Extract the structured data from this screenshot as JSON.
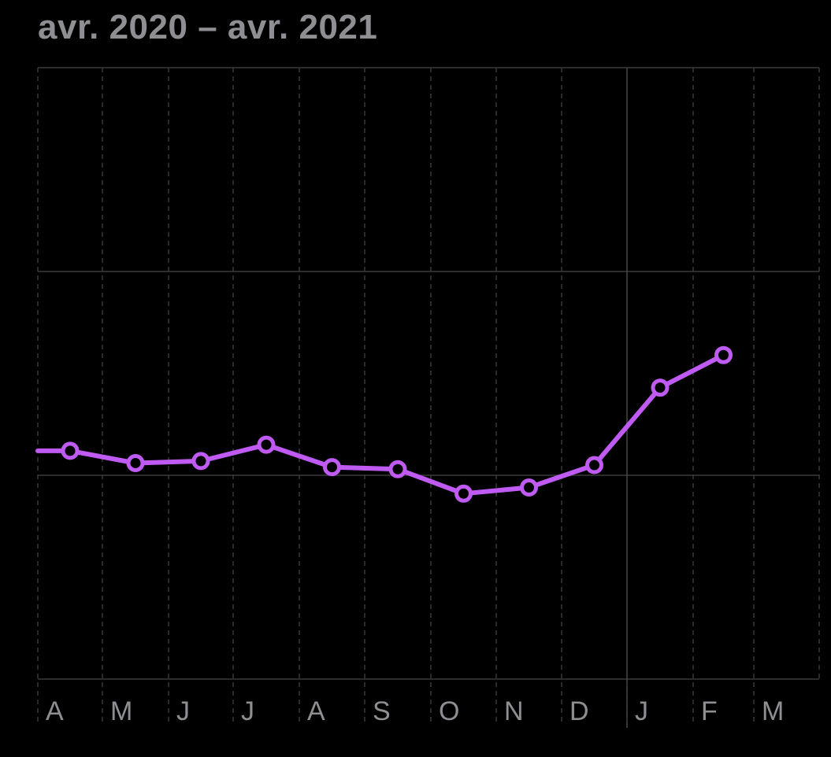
{
  "header": {
    "range_label": "avr. 2020 – avr. 2021"
  },
  "colors": {
    "background": "#000000",
    "series": "#bf5af2",
    "grid": "#3a3a3c",
    "grid_dashed": "#38383a",
    "label": "#8e8e93"
  },
  "chart_data": {
    "type": "line",
    "title": "",
    "xlabel": "",
    "ylabel": "",
    "x_tick_labels": [
      "A",
      "M",
      "J",
      "J",
      "A",
      "S",
      "O",
      "N",
      "D",
      "J",
      "F",
      "M"
    ],
    "x_range_months": [
      0,
      12
    ],
    "ylim": [
      0,
      3
    ],
    "y_gridlines": [
      0,
      1,
      2,
      3
    ],
    "grid": true,
    "legend": "none",
    "series": [
      {
        "x": [
          0,
          0.5,
          1.5,
          2.5,
          3.5,
          4.5,
          5.5,
          6.5,
          7.5,
          8.5,
          9.5,
          10.5
        ],
        "y": [
          1.12,
          1.12,
          1.06,
          1.07,
          1.15,
          1.04,
          1.03,
          0.91,
          0.94,
          1.05,
          1.43,
          1.59
        ],
        "markers": [
          false,
          true,
          true,
          true,
          true,
          true,
          true,
          true,
          true,
          true,
          true,
          true
        ]
      }
    ]
  }
}
